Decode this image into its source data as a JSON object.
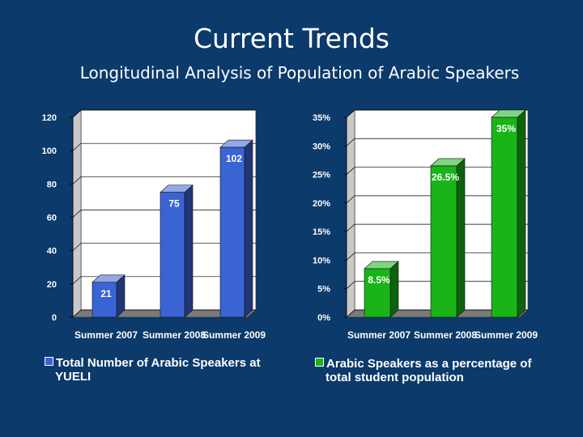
{
  "slide": {
    "title": "Current Trends",
    "subtitle": "Longitudinal Analysis of Population of Arabic Speakers"
  },
  "chart_data": [
    {
      "type": "bar",
      "title": "",
      "categories": [
        "Summer 2007",
        "Summer 2008",
        "Summer 2009"
      ],
      "series": [
        {
          "name": "Total Number of Arabic Speakers at YUELI",
          "values": [
            21,
            75,
            102
          ]
        }
      ],
      "data_labels": [
        "21",
        "75",
        "102"
      ],
      "ylim": [
        0,
        120
      ],
      "yticks": [
        0,
        20,
        40,
        60,
        80,
        100,
        120
      ],
      "ytick_labels": [
        "0",
        "20",
        "40",
        "60",
        "80",
        "100",
        "120"
      ],
      "grid": true,
      "legend": "bottom",
      "legend_lines": [
        "Total Number of Arabic Speakers at",
        "YUELI"
      ],
      "color": "#3a63d4"
    },
    {
      "type": "bar",
      "title": "",
      "categories": [
        "Summer 2007",
        "Summer 2008",
        "Summer 2009"
      ],
      "series": [
        {
          "name": "Arabic Speakers as a percentage of total student population",
          "values": [
            8.5,
            26.5,
            35
          ]
        }
      ],
      "data_labels": [
        "8.5%",
        "26.5%",
        "35%"
      ],
      "ylim": [
        0,
        35
      ],
      "yticks": [
        0,
        5,
        10,
        15,
        20,
        25,
        30,
        35
      ],
      "ytick_labels": [
        "0%",
        "5%",
        "10%",
        "15%",
        "20%",
        "25%",
        "30%",
        "35%"
      ],
      "grid": true,
      "legend": "bottom",
      "legend_lines": [
        "Arabic Speakers as a percentage of",
        "total student population"
      ],
      "color": "#18b418"
    }
  ]
}
